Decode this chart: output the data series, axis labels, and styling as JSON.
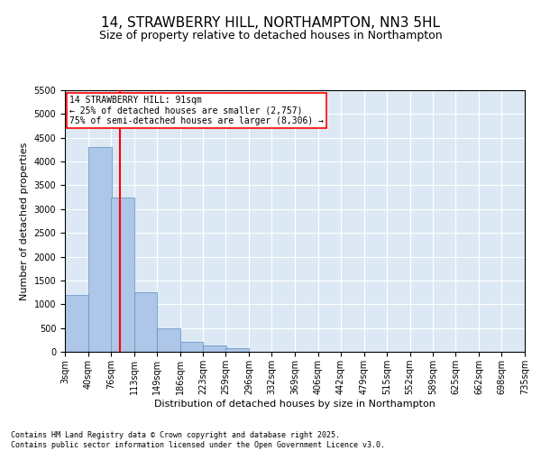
{
  "title": "14, STRAWBERRY HILL, NORTHAMPTON, NN3 5HL",
  "subtitle": "Size of property relative to detached houses in Northampton",
  "xlabel": "Distribution of detached houses by size in Northampton",
  "ylabel": "Number of detached properties",
  "bins": [
    "3sqm",
    "40sqm",
    "76sqm",
    "113sqm",
    "149sqm",
    "186sqm",
    "223sqm",
    "259sqm",
    "296sqm",
    "332sqm",
    "369sqm",
    "406sqm",
    "442sqm",
    "479sqm",
    "515sqm",
    "552sqm",
    "589sqm",
    "625sqm",
    "662sqm",
    "698sqm",
    "735sqm"
  ],
  "bin_edges": [
    3,
    40,
    76,
    113,
    149,
    186,
    223,
    259,
    296,
    332,
    369,
    406,
    442,
    479,
    515,
    552,
    589,
    625,
    662,
    698,
    735
  ],
  "values": [
    1200,
    4300,
    3250,
    1250,
    490,
    200,
    130,
    80,
    0,
    0,
    0,
    0,
    0,
    0,
    0,
    0,
    0,
    0,
    0,
    0
  ],
  "bar_color": "#aec6e8",
  "bar_edge_color": "#5a8fc2",
  "vline_x": 91,
  "vline_color": "red",
  "annotation_title": "14 STRAWBERRY HILL: 91sqm",
  "annotation_line1": "← 25% of detached houses are smaller (2,757)",
  "annotation_line2": "75% of semi-detached houses are larger (8,306) →",
  "annotation_box_color": "red",
  "ylim": [
    0,
    5500
  ],
  "yticks": [
    0,
    500,
    1000,
    1500,
    2000,
    2500,
    3000,
    3500,
    4000,
    4500,
    5000,
    5500
  ],
  "background_color": "#dce9f5",
  "footer_line1": "Contains HM Land Registry data © Crown copyright and database right 2025.",
  "footer_line2": "Contains public sector information licensed under the Open Government Licence v3.0.",
  "title_fontsize": 11,
  "subtitle_fontsize": 9,
  "axis_label_fontsize": 8,
  "tick_fontsize": 7,
  "annotation_fontsize": 7,
  "footer_fontsize": 6
}
